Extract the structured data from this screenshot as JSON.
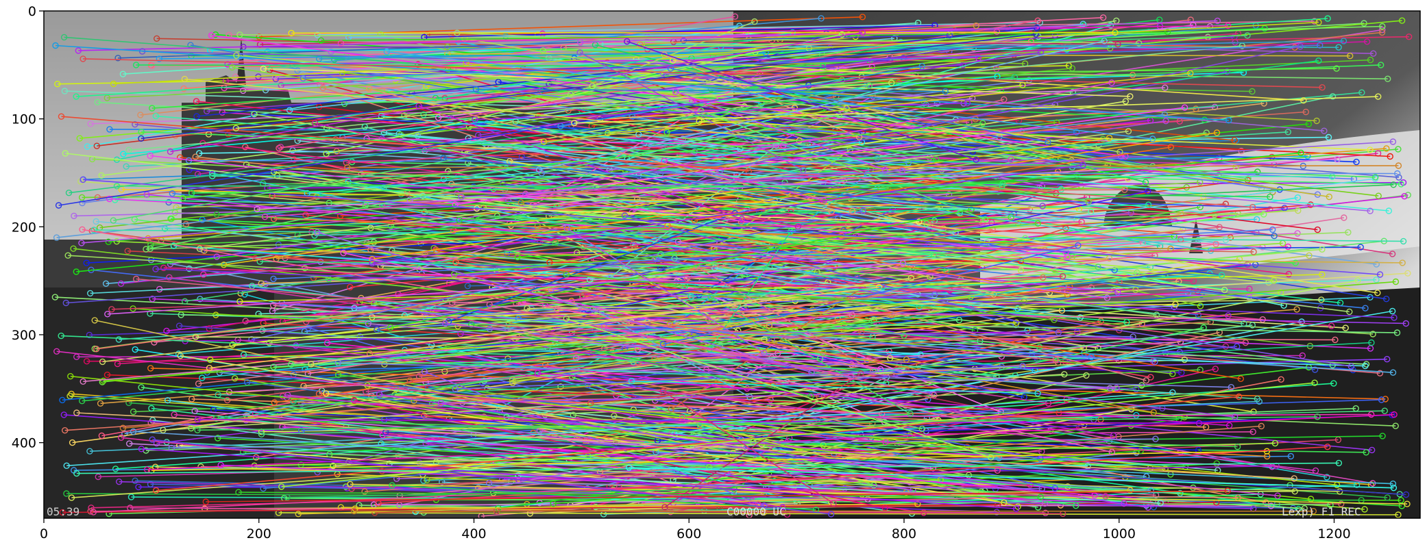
{
  "figure": {
    "description_kind": "feature-match-visualization",
    "x_ticks": [
      "0",
      "200",
      "400",
      "600",
      "800",
      "1000",
      "1200"
    ],
    "y_ticks": [
      "0",
      "100",
      "200",
      "300",
      "400"
    ],
    "x_range": [
      0,
      1280
    ],
    "y_range": [
      470,
      0
    ],
    "match_lines_estimate": 900,
    "colors": {
      "sky_left": "#8f8f8f",
      "sky_right": "#4e4e4e",
      "ground": "#2a2a2a",
      "frame": "#000000"
    },
    "overlay_text": {
      "bottom_left": "05:39 ",
      "bottom_center": "C00000 UC",
      "bottom_right": "Lexp) F1 REC"
    }
  }
}
